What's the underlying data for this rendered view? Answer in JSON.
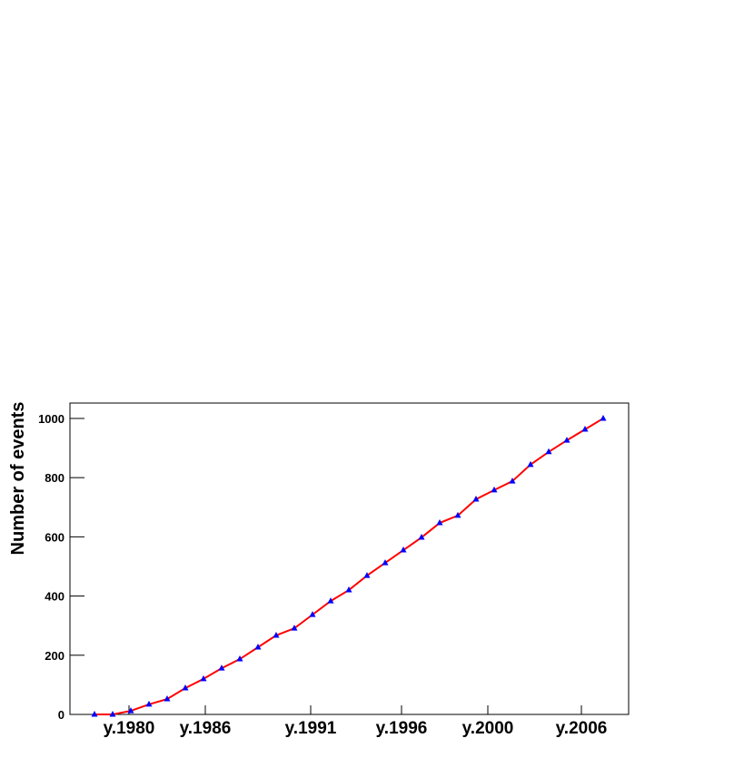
{
  "chart_data": {
    "type": "line",
    "y_label": "Number of events",
    "series": [
      {
        "name": "events",
        "color": "#ff0000",
        "marker_color": "#0000ff",
        "values": [
          0,
          0,
          12,
          34,
          52,
          89,
          120,
          156,
          187,
          227,
          267,
          291,
          337,
          383,
          420,
          469,
          512,
          555,
          598,
          647,
          672,
          727,
          758,
          788,
          844,
          887,
          926,
          963,
          1000
        ]
      }
    ],
    "xlim": [
      -1.35,
      29.4
    ],
    "xticks": [
      {
        "value": 1.9,
        "label": "y.1980"
      },
      {
        "value": 6.1,
        "label": "y.1986"
      },
      {
        "value": 11.9,
        "label": "y.1991"
      },
      {
        "value": 16.9,
        "label": "y.1996"
      },
      {
        "value": 21.65,
        "label": "y.2000"
      },
      {
        "value": 26.8,
        "label": "y.2006"
      }
    ],
    "ylim": [
      0,
      1052
    ],
    "yticks": [
      0,
      200,
      400,
      600,
      800,
      1000
    ]
  }
}
